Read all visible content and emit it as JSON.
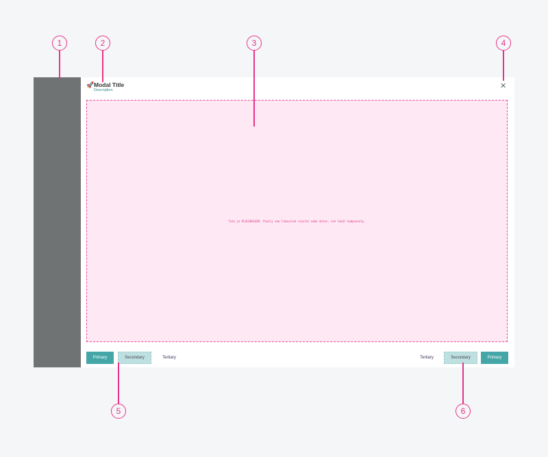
{
  "modal": {
    "title": "Modal Title",
    "description": "Description",
    "title_icon": "rocket-icon",
    "close_icon": "close-icon",
    "placeholder": "Toto je PLACEHOLDER. Použij sem libovolné vlastní nebo dotaz, své lokál komponenty."
  },
  "footer_left": {
    "primary": "Primary",
    "secondary": "Secondary",
    "tertiary": "Tertiary"
  },
  "footer_right": {
    "tertiary": "Tertiary",
    "secondary": "Secondary",
    "primary": "Primary"
  },
  "callouts": [
    "1",
    "2",
    "3",
    "4",
    "5",
    "6"
  ],
  "colors": {
    "accent": "#45a6a8",
    "callout": "#e8318a",
    "placeholder_bg": "#fde8f3",
    "sidebar": "#707374"
  }
}
